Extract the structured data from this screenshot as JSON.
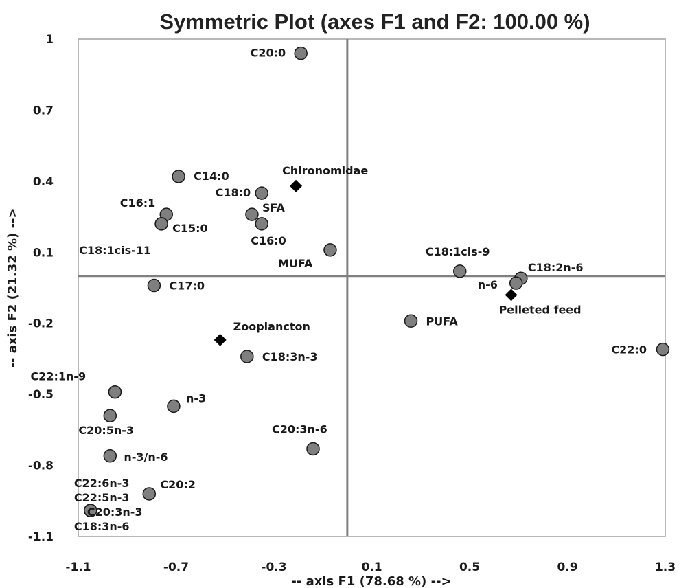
{
  "chart_data": {
    "type": "scatter",
    "title": "Symmetric Plot (axes F1 and F2: 100.00 %)",
    "xlabel": "-- axis F1 (78.68 %) -->",
    "ylabel": "-- axis F2 (21.32 %) -->",
    "xlim": [
      -1.1,
      1.3
    ],
    "ylim": [
      -1.1,
      1.0
    ],
    "xticks": [
      "-1.1",
      "-0.7",
      "-0.3",
      "0.1",
      "0.5",
      "0.9",
      "1.3"
    ],
    "yticks": [
      "1",
      "0.7",
      "0.4",
      "0.1",
      "-0.2",
      "-0.5",
      "-0.8",
      "-1.1"
    ],
    "colors": {
      "variable": "#7f7f7f",
      "variable_stroke": "#1a1a1a",
      "observation": "#000000",
      "axis_lines": "#808080",
      "frame": "#a0a0a0"
    },
    "series": [
      {
        "marker": "circle",
        "points": [
          {
            "label": "C20:0",
            "x": -0.19,
            "y": 0.94
          },
          {
            "label": "C14:0",
            "x": -0.69,
            "y": 0.42
          },
          {
            "label": "C18:0",
            "x": -0.35,
            "y": 0.35
          },
          {
            "label": "C16:1",
            "x": -0.74,
            "y": 0.26
          },
          {
            "label": "SFA",
            "x": -0.39,
            "y": 0.26
          },
          {
            "label": "C15:0",
            "x": -0.76,
            "y": 0.22
          },
          {
            "label": "C16:0",
            "x": -0.35,
            "y": 0.22
          },
          {
            "label": "C18:1cis-11",
            "x": -0.76,
            "y": 0.22
          },
          {
            "label": "MUFA",
            "x": -0.07,
            "y": 0.11
          },
          {
            "label": "C18:1cis-9",
            "x": 0.46,
            "y": 0.02
          },
          {
            "label": "C18:2n-6",
            "x": 0.71,
            "y": -0.01
          },
          {
            "label": "n-6",
            "x": 0.69,
            "y": -0.03
          },
          {
            "label": "C17:0",
            "x": -0.79,
            "y": -0.04
          },
          {
            "label": "PUFA",
            "x": 0.26,
            "y": -0.19
          },
          {
            "label": "C22:0",
            "x": 1.29,
            "y": -0.31
          },
          {
            "label": "C18:3n-3",
            "x": -0.41,
            "y": -0.34
          },
          {
            "label": "C22:1n-9",
            "x": -0.95,
            "y": -0.49
          },
          {
            "label": "n-3",
            "x": -0.71,
            "y": -0.55
          },
          {
            "label": "C20:5n-3",
            "x": -0.97,
            "y": -0.59
          },
          {
            "label": "C20:3n-6",
            "x": -0.14,
            "y": -0.73
          },
          {
            "label": "n-3/n-6",
            "x": -0.97,
            "y": -0.76
          },
          {
            "label": "C20:2",
            "x": -0.81,
            "y": -0.92
          },
          {
            "label": "C22:6n-3",
            "x": -1.05,
            "y": -0.99
          },
          {
            "label": "C22:5n-3",
            "x": -1.05,
            "y": -0.99
          },
          {
            "label": "C20:3n-3",
            "x": -1.05,
            "y": -0.99
          },
          {
            "label": "C18:3n-6",
            "x": -1.05,
            "y": -0.99
          }
        ]
      },
      {
        "marker": "diamond",
        "points": [
          {
            "label": "Chironomidae",
            "x": -0.21,
            "y": 0.38
          },
          {
            "label": "Pelleted feed",
            "x": 0.67,
            "y": -0.08
          },
          {
            "label": "Zooplancton",
            "x": -0.52,
            "y": -0.27
          }
        ]
      }
    ]
  }
}
